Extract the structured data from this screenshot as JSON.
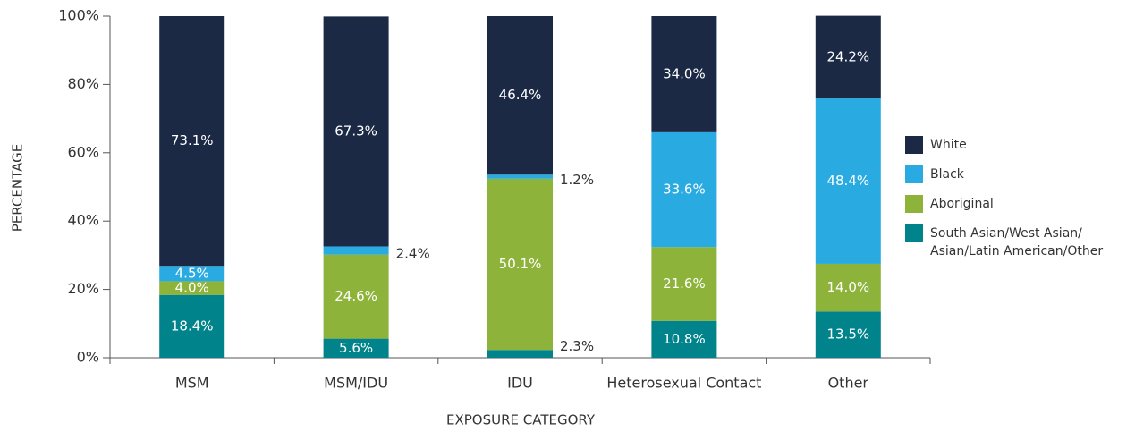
{
  "chart_data": {
    "type": "stacked_bar",
    "xlabel": "EXPOSURE CATEGORY",
    "ylabel": "PERCENTAGE",
    "categories": [
      "MSM",
      "MSM/IDU",
      "IDU",
      "Heterosexual Contact",
      "Other"
    ],
    "series": [
      {
        "name": "South Asian/West Asian/Asian/Latin American/Other",
        "color": "#00838b",
        "values": [
          18.4,
          5.6,
          2.3,
          10.8,
          13.5
        ],
        "value_labels": [
          "18.4%",
          "5.6%",
          "2.3%",
          "10.8%",
          "13.5%"
        ]
      },
      {
        "name": "Aboriginal",
        "color": "#8db33a",
        "values": [
          4.0,
          24.6,
          50.1,
          21.6,
          14.0
        ],
        "value_labels": [
          "4.0%",
          "24.6%",
          "50.1%",
          "21.6%",
          "14.0%"
        ]
      },
      {
        "name": "Black",
        "color": "#29abe2",
        "values": [
          4.5,
          2.4,
          1.2,
          33.6,
          48.4
        ],
        "value_labels": [
          "4.5%",
          "2.4%",
          "1.2%",
          "33.6%",
          "48.4%"
        ]
      },
      {
        "name": "White",
        "color": "#1b2945",
        "values": [
          73.1,
          67.3,
          46.4,
          34.0,
          24.2
        ],
        "value_labels": [
          "73.1%",
          "67.3%",
          "46.4%",
          "34.0%",
          "24.2%"
        ]
      }
    ],
    "ylim": [
      0,
      100
    ],
    "yticks": [
      {
        "value": 0,
        "label": "0%"
      },
      {
        "value": 20,
        "label": "20%"
      },
      {
        "value": 40,
        "label": "40%"
      },
      {
        "value": 60,
        "label": "60%"
      },
      {
        "value": 80,
        "label": "80%"
      },
      {
        "value": 100,
        "label": "100%"
      }
    ],
    "legend": "right"
  }
}
